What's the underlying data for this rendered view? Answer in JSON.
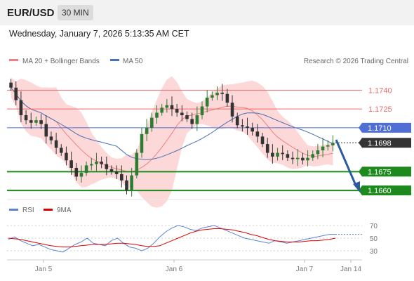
{
  "header": {
    "symbol": "EUR/USD",
    "timeframe": "30 MIN",
    "timestamp": "Wednesday, January 7, 2026 5:13:35 AM CET"
  },
  "legend": {
    "ma20_label": "MA 20 + Bollinger Bands",
    "ma50_label": "MA 50",
    "copyright": "Research © 2026 Trading Central",
    "rsi_label": "RSI",
    "rsi_ma_label": "9MA"
  },
  "colors": {
    "ma20": "#f08080",
    "band": "#fdd8d8",
    "ma50": "#4a6fb3",
    "rsi": "#5b84d6",
    "rsi_ma": "#e00000",
    "resistance": "#ef6b6b",
    "support": "#1e8a1e",
    "pivot": "#4f6fd6",
    "current": "#333333",
    "up_candle": "#2e7d32",
    "down_candle": "#333333",
    "arrow": "#2b5c9e"
  },
  "chart_data": [
    {
      "type": "candlestick",
      "title": "EUR/USD",
      "ylim": [
        1.1655,
        1.1757
      ],
      "x_ticks": [
        "Jan 5",
        "Jan 6",
        "Jan 7",
        "Jan 14"
      ],
      "candles_approx_close": [
        1.1742,
        1.1732,
        1.172,
        1.1716,
        1.1714,
        1.1716,
        1.1713,
        1.1703,
        1.17,
        1.1694,
        1.169,
        1.1684,
        1.1678,
        1.1671,
        1.1674,
        1.168,
        1.1681,
        1.1683,
        1.1681,
        1.1677,
        1.1675,
        1.1673,
        1.1668,
        1.166,
        1.1672,
        1.169,
        1.1705,
        1.171,
        1.1718,
        1.1722,
        1.1726,
        1.1728,
        1.1725,
        1.1722,
        1.172,
        1.1717,
        1.1713,
        1.172,
        1.1727,
        1.1734,
        1.1736,
        1.1738,
        1.1737,
        1.173,
        1.1719,
        1.1712,
        1.1711,
        1.171,
        1.1707,
        1.1703,
        1.1697,
        1.169,
        1.1687,
        1.169,
        1.1689,
        1.1686,
        1.1685,
        1.1686,
        1.1684,
        1.1686,
        1.1689,
        1.1692,
        1.1695,
        1.1696,
        1.1698
      ],
      "levels": [
        {
          "value": "1.1740",
          "kind": "resistance"
        },
        {
          "value": "1.1725",
          "kind": "resistance"
        },
        {
          "value": "1.1710",
          "kind": "pivot"
        },
        {
          "value": "1.1698",
          "kind": "current"
        },
        {
          "value": "1.1675",
          "kind": "support"
        },
        {
          "value": "1.1660",
          "kind": "support"
        }
      ],
      "indicators": [
        "MA 20 + Bollinger Bands",
        "MA 50"
      ]
    },
    {
      "type": "line",
      "title": "RSI",
      "ylim": [
        20,
        80
      ],
      "y_ticks": [
        70,
        50,
        30
      ],
      "series": [
        {
          "name": "RSI",
          "values": [
            48,
            52,
            46,
            42,
            38,
            40,
            36,
            32,
            30,
            28,
            34,
            40,
            44,
            50,
            42,
            40,
            38,
            46,
            50,
            42,
            36,
            34,
            30,
            34,
            42,
            52,
            60,
            66,
            70,
            68,
            64,
            62,
            66,
            68,
            70,
            66,
            62,
            58,
            54,
            50,
            48,
            46,
            44,
            42,
            46,
            44,
            42,
            44,
            46,
            48,
            50,
            52,
            54,
            56,
            56
          ]
        },
        {
          "name": "9MA",
          "values": [
            50,
            49,
            48,
            46,
            44,
            42,
            40,
            38,
            37,
            36,
            36,
            37,
            38,
            39,
            40,
            40,
            40,
            41,
            42,
            42,
            41,
            40,
            38,
            37,
            37,
            38,
            42,
            46,
            50,
            54,
            58,
            61,
            63,
            64,
            65,
            65,
            64,
            63,
            61,
            59,
            56,
            54,
            51,
            48,
            46,
            45,
            44,
            44,
            44,
            45,
            46,
            46,
            47,
            48,
            50
          ]
        }
      ]
    }
  ]
}
